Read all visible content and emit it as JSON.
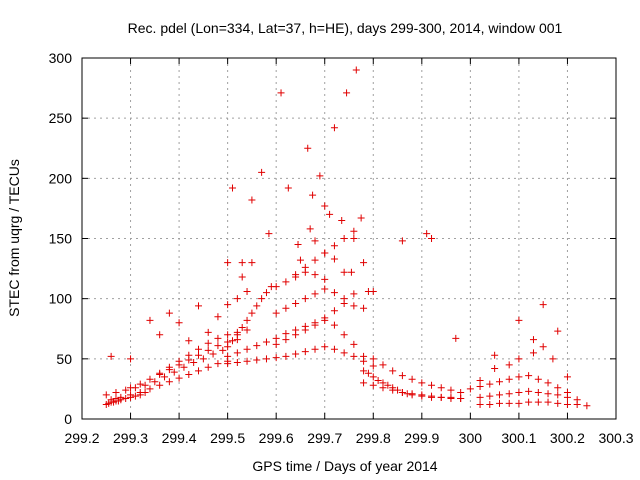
{
  "chart_data": {
    "type": "scatter",
    "title": "Rec. pdel (Lon=334, Lat=37, h=HE), days 299-300, 2014, window 001",
    "xlabel": "GPS time / Days of year 2014",
    "ylabel": "STEC from uqrg / TECUs",
    "xlim": [
      299.2,
      300.3
    ],
    "ylim": [
      0,
      300
    ],
    "xticks": [
      "299.2",
      "299.3",
      "299.4",
      "299.5",
      "299.6",
      "299.7",
      "299.8",
      "299.9",
      "300",
      "300.1",
      "300.2",
      "300.3"
    ],
    "yticks": [
      "0",
      "50",
      "100",
      "150",
      "200",
      "250",
      "300"
    ],
    "grid": true,
    "marker": "plus",
    "color": "#e00000",
    "series": [
      {
        "x": [
          299.25,
          299.255,
          299.26,
          299.265,
          299.27,
          299.275,
          299.28,
          299.29,
          299.3,
          299.31,
          299.32,
          299.33,
          299.26,
          299.27,
          299.28,
          299.3,
          299.32,
          299.34,
          299.36,
          299.38,
          299.4,
          299.42,
          299.44,
          299.46,
          299.48,
          299.5,
          299.25,
          299.27,
          299.29,
          299.31,
          299.33,
          299.35,
          299.37,
          299.39,
          299.41,
          299.43,
          299.45,
          299.47,
          299.49,
          299.3,
          299.32,
          299.34,
          299.36,
          299.38,
          299.4,
          299.42,
          299.44,
          299.46,
          299.48,
          299.5,
          299.52,
          299.36,
          299.38,
          299.4,
          299.42,
          299.44,
          299.46,
          299.48,
          299.5,
          299.52,
          299.54,
          299.5,
          299.52,
          299.54,
          299.56,
          299.58,
          299.6,
          299.62,
          299.64,
          299.66,
          299.68,
          299.7,
          299.72,
          299.74,
          299.76,
          299.78,
          299.8,
          299.5,
          299.52,
          299.54,
          299.56,
          299.58,
          299.6,
          299.62,
          299.64,
          299.66,
          299.68,
          299.7,
          299.72,
          299.74,
          299.76,
          299.78,
          299.5,
          299.51,
          299.52,
          299.53,
          299.54,
          299.55,
          299.56,
          299.57,
          299.58,
          299.6,
          299.62,
          299.64,
          299.66,
          299.68,
          299.7,
          299.5,
          299.52,
          299.54,
          299.6,
          299.62,
          299.64,
          299.66,
          299.68,
          299.7,
          299.72,
          299.74,
          299.76,
          299.6,
          299.62,
          299.64,
          299.66,
          299.68,
          299.7,
          299.72,
          299.74,
          299.76,
          299.78,
          299.64,
          299.66,
          299.68,
          299.7,
          299.72,
          299.74,
          299.76,
          299.78,
          299.8,
          299.78,
          299.79,
          299.8,
          299.81,
          299.82,
          299.83,
          299.84,
          299.85,
          299.86,
          299.87,
          299.88,
          299.9,
          299.92,
          299.94,
          299.96,
          299.98,
          299.78,
          299.8,
          299.82,
          299.84,
          299.86,
          299.88,
          299.9,
          299.92,
          299.94,
          299.96,
          299.98,
          299.8,
          299.82,
          299.84,
          299.86,
          299.88,
          299.9,
          299.92,
          299.94,
          299.96,
          299.98,
          300.02,
          300.04,
          300.06,
          300.08,
          300.1,
          300.12,
          300.14,
          300.16,
          300.18,
          300.2,
          300.22,
          300.24,
          300.02,
          300.04,
          300.06,
          300.08,
          300.1,
          300.12,
          300.14,
          300.16,
          300.18,
          300.2,
          300.22,
          300.0,
          300.02,
          300.04,
          300.06,
          300.08,
          300.1,
          300.12,
          300.14,
          300.16,
          300.18,
          300.2,
          300.02,
          300.05,
          300.08,
          300.1,
          300.13,
          300.15,
          300.17,
          300.2,
          299.26,
          299.3,
          299.34,
          299.36,
          299.38,
          299.4,
          299.42,
          299.44,
          299.46,
          299.48,
          299.51,
          299.53,
          299.55,
          299.57,
          299.585,
          299.61,
          299.625,
          299.645,
          299.665,
          299.675,
          299.69,
          299.7,
          299.71,
          299.72,
          299.735,
          299.745,
          299.755,
          299.765,
          299.775,
          299.79,
          299.86,
          299.91,
          299.92,
          299.5,
          299.53,
          299.55,
          299.59,
          299.65,
          299.67,
          299.68,
          299.7,
          299.72,
          299.74,
          299.76,
          300.1,
          300.13,
          300.15,
          300.18,
          300.05,
          299.97
        ],
        "y": [
          12,
          13,
          14,
          14,
          15,
          15,
          16,
          17,
          18,
          19,
          20,
          22,
          16,
          17,
          18,
          20,
          22,
          25,
          28,
          31,
          34,
          37,
          40,
          43,
          46,
          48,
          20,
          22,
          24,
          26,
          28,
          31,
          35,
          39,
          43,
          47,
          50,
          54,
          57,
          26,
          29,
          33,
          37,
          41,
          45,
          49,
          53,
          57,
          61,
          64,
          66,
          38,
          43,
          48,
          53,
          58,
          63,
          67,
          70,
          72,
          74,
          46,
          47,
          48,
          49,
          50,
          51,
          52,
          54,
          56,
          58,
          60,
          58,
          55,
          52,
          48,
          44,
          52,
          55,
          58,
          61,
          64,
          67,
          71,
          74,
          77,
          80,
          82,
          78,
          70,
          62,
          52,
          60,
          65,
          70,
          76,
          82,
          88,
          94,
          100,
          105,
          110,
          114,
          118,
          122,
          120,
          116,
          95,
          100,
          106,
          88,
          92,
          96,
          100,
          104,
          108,
          105,
          100,
          94,
          62,
          66,
          70,
          74,
          78,
          84,
          90,
          96,
          104,
          92,
          120,
          126,
          132,
          138,
          144,
          150,
          156,
          130,
          106,
          40,
          38,
          35,
          32,
          30,
          28,
          26,
          24,
          22,
          21,
          20,
          19,
          18,
          18,
          17,
          17,
          30,
          28,
          26,
          24,
          22,
          21,
          20,
          19,
          18,
          18,
          17,
          50,
          45,
          40,
          36,
          33,
          30,
          28,
          26,
          24,
          22,
          12,
          12,
          13,
          13,
          13,
          14,
          14,
          14,
          13,
          12,
          12,
          11,
          18,
          19,
          20,
          21,
          22,
          23,
          22,
          21,
          20,
          18,
          16,
          25,
          27,
          29,
          31,
          33,
          35,
          36,
          33,
          30,
          26,
          22,
          32,
          42,
          45,
          50,
          55,
          60,
          50,
          35,
          52,
          50,
          82,
          70,
          88,
          80,
          65,
          94,
          72,
          85,
          192,
          130,
          182,
          205,
          154,
          271,
          192,
          145,
          225,
          186,
          202,
          177,
          170,
          242,
          165,
          271,
          122,
          290,
          167,
          106,
          148,
          154,
          150,
          130,
          118,
          130,
          110,
          132,
          158,
          148,
          138,
          133,
          122,
          150,
          82,
          66,
          95,
          73,
          53,
          67
        ]
      }
    ]
  }
}
